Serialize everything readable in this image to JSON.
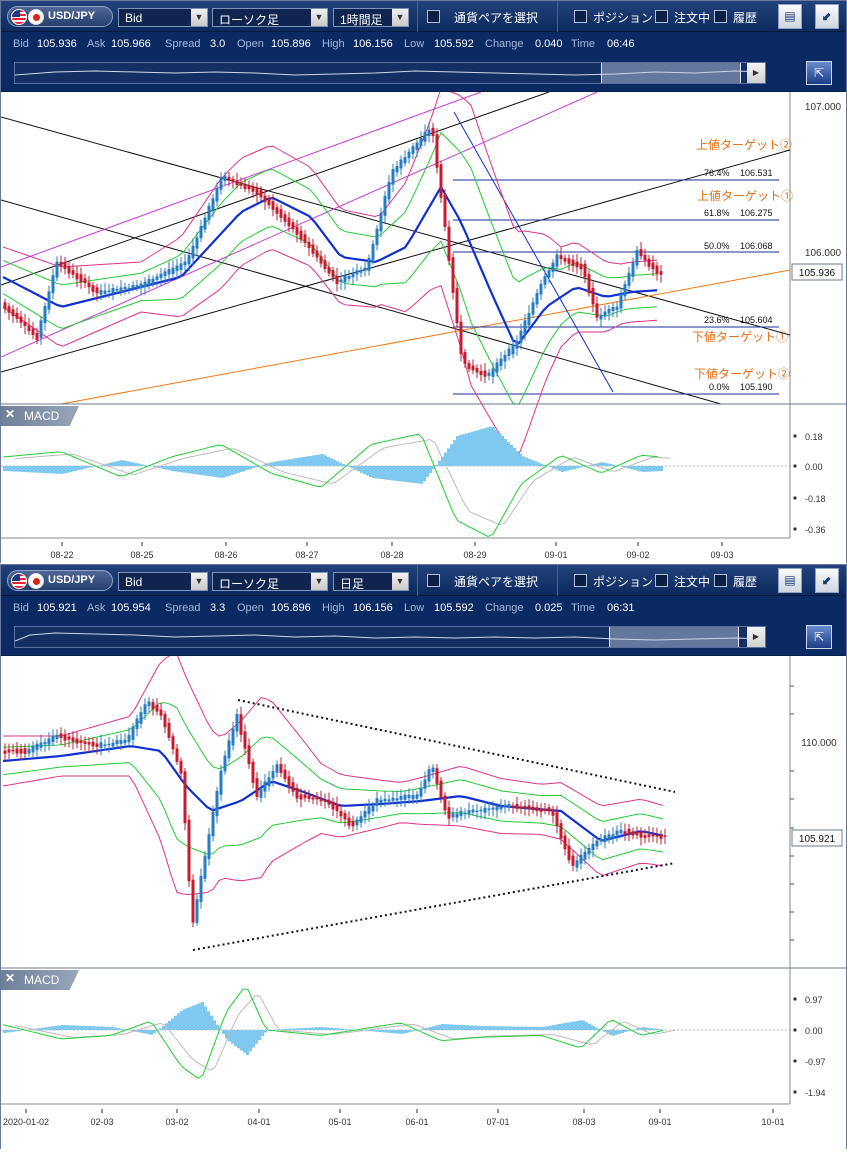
{
  "panels": [
    {
      "toolbar": {
        "pair": "USD/JPY",
        "price_type": "Bid",
        "chart_type": "ローソク足",
        "timeframe": "1時間足",
        "select_pair_label": "通貨ペアを選択",
        "position_label": "ポジション",
        "orders_label": "注文中",
        "history_label": "履歴"
      },
      "quote": {
        "bid_label": "Bid",
        "bid": "105.936",
        "ask_label": "Ask",
        "ask": "105.966",
        "spread_label": "Spread",
        "spread": "3.0",
        "open_label": "Open",
        "open": "105.896",
        "high_label": "High",
        "high": "106.156",
        "low_label": "Low",
        "low": "105.592",
        "change_label": "Change",
        "change": "0.040",
        "time_label": "Time",
        "time": "06:46"
      },
      "price_axis": [
        "107.000",
        "106.000"
      ],
      "last_price": "105.936",
      "fib_levels": [
        {
          "pct": "76.4%",
          "price": "106.531"
        },
        {
          "pct": "61.8%",
          "price": "106.275"
        },
        {
          "pct": "50.0%",
          "price": "106.068"
        },
        {
          "pct": "23.6%",
          "price": "105.604"
        },
        {
          "pct": "0.0%",
          "price": "105.190"
        }
      ],
      "annotations": {
        "upper2": "上値ターゲット②",
        "upper1": "上値ターゲット①",
        "lower1": "下値ターゲット①",
        "lower2": "下値ターゲット②"
      },
      "macd": {
        "label": "MACD",
        "close_glyph": "✕",
        "axis": [
          "0.18",
          "0.00",
          "-0.18",
          "-0.36"
        ]
      },
      "dates": [
        "08-22",
        "08-25",
        "08-26",
        "08-27",
        "08-28",
        "08-29",
        "09-01",
        "09-02",
        "09-03"
      ]
    },
    {
      "toolbar": {
        "pair": "USD/JPY",
        "price_type": "Bid",
        "chart_type": "ローソク足",
        "timeframe": "日足",
        "select_pair_label": "通貨ペアを選択",
        "position_label": "ポジション",
        "orders_label": "注文中",
        "history_label": "履歴"
      },
      "quote": {
        "bid_label": "Bid",
        "bid": "105.921",
        "ask_label": "Ask",
        "ask": "105.954",
        "spread_label": "Spread",
        "spread": "3.3",
        "open_label": "Open",
        "open": "105.896",
        "high_label": "High",
        "high": "106.156",
        "low_label": "Low",
        "low": "105.592",
        "change_label": "Change",
        "change": "0.025",
        "time_label": "Time",
        "time": "06:31"
      },
      "price_axis": [
        "110.000"
      ],
      "last_price": "105.921",
      "macd": {
        "label": "MACD",
        "close_glyph": "✕",
        "axis": [
          "0.97",
          "0.00",
          "-0.97",
          "-1.94"
        ]
      },
      "dates": [
        "2020-01-02",
        "02-03",
        "03-02",
        "04-01",
        "05-01",
        "06-01",
        "07-01",
        "08-03",
        "09-01",
        "10-01"
      ]
    }
  ],
  "icons": {
    "jump": "jump-latest-icon",
    "toolbar_right1": "export-icon",
    "toolbar_right2": "collapse-icon"
  },
  "colors": {
    "toolbar": "#0c2a5e",
    "bollinger": "#e0338a",
    "bollinger_inner": "#22cc33",
    "ma": "#1030d0",
    "candle_up": "#2a7cc0",
    "candle_down": "#c21e30",
    "macd_hist": "#7fc8f0",
    "fib": "#1a2c9a",
    "trend_orange": "#f07a1a",
    "channel_purple": "#c43cd8",
    "annotation": "#e0701a"
  }
}
